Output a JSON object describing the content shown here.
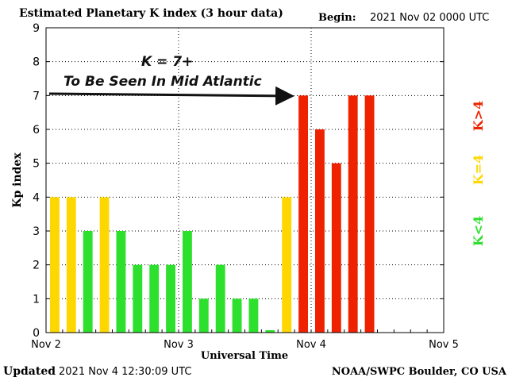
{
  "header": {
    "title": "Estimated Planetary K index (3 hour data)",
    "begin_label": "Begin:",
    "begin_value": "2021 Nov 02 0000 UTC"
  },
  "footer": {
    "updated_label": "Updated",
    "updated_value": "2021 Nov  4 12:30:09 UTC",
    "credit": "NOAA/SWPC Boulder, CO USA"
  },
  "annotation": {
    "line1": "K = 7+",
    "line2": "To Be Seen In Mid Atlantic"
  },
  "legend": {
    "low": "K<4",
    "mid": "K=4",
    "high": "K>4"
  },
  "colors": {
    "low": "#2ee02e",
    "mid": "#ffd700",
    "high": "#ee2200",
    "grid": "#000000"
  },
  "chart_data": {
    "type": "bar",
    "xlabel": "Universal Time",
    "ylabel": "Kp index",
    "ylim": [
      0,
      9
    ],
    "yticks": [
      0,
      1,
      2,
      3,
      4,
      5,
      6,
      7,
      8,
      9
    ],
    "x_ticks": [
      "Nov 2",
      "Nov 3",
      "Nov 4",
      "Nov 5"
    ],
    "x_range_days": 3,
    "interval_hours": 3,
    "grid": "dotted",
    "values": [
      4,
      4,
      3,
      4,
      3,
      2,
      2,
      2,
      3,
      1,
      2,
      1,
      1,
      0.07,
      4,
      7,
      6,
      5,
      7,
      7
    ]
  }
}
